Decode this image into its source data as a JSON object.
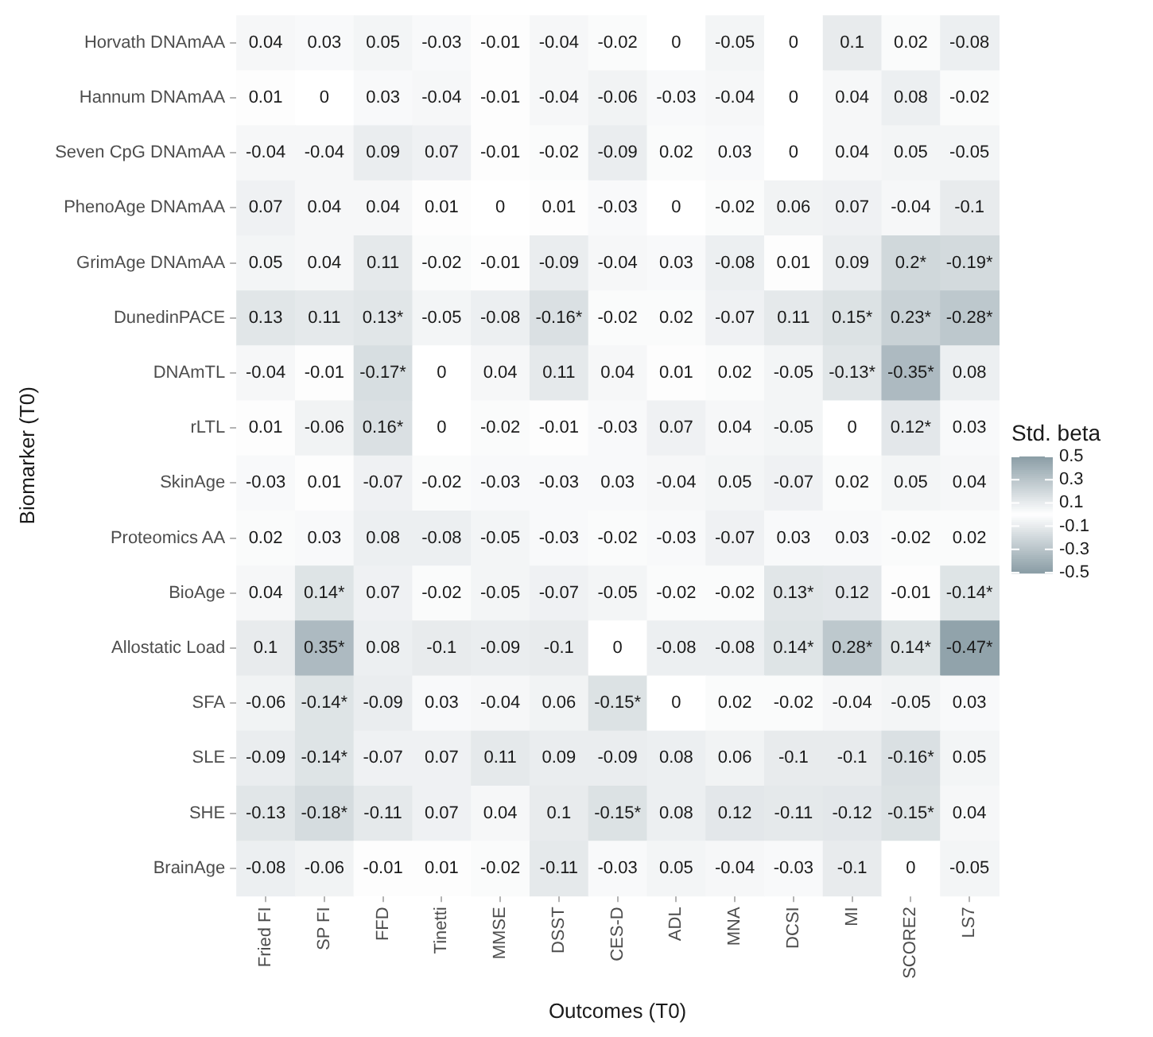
{
  "chart_data": {
    "type": "heatmap",
    "xlabel": "Outcomes (T0)",
    "ylabel": "Biomarker (T0)",
    "legend_title": "Std. beta",
    "categories": [
      "Fried FI",
      "SP FI",
      "FFD",
      "Tinetti",
      "MMSE",
      "DSST",
      "CES-D",
      "ADL",
      "MNA",
      "DCSI",
      "MI",
      "SCORE2",
      "LS7"
    ],
    "y_categories": [
      "Horvath DNAmAA",
      "Hannum DNAmAA",
      "Seven CpG DNAmAA",
      "PhenoAge DNAmAA",
      "GrimAge DNAmAA",
      "DunedinPACE",
      "DNAmTL",
      "rLTL",
      "SkinAge",
      "Proteomics AA",
      "BioAge",
      "Allostatic Load",
      "SFA",
      "SLE",
      "SHE",
      "BrainAge"
    ],
    "cells": [
      [
        0.04,
        0.03,
        0.05,
        -0.03,
        -0.01,
        -0.04,
        -0.02,
        0,
        -0.05,
        0,
        0.1,
        0.02,
        -0.08
      ],
      [
        0.01,
        0,
        0.03,
        -0.04,
        -0.01,
        -0.04,
        -0.06,
        -0.03,
        -0.04,
        0,
        0.04,
        0.08,
        -0.02
      ],
      [
        -0.04,
        -0.04,
        0.09,
        0.07,
        -0.01,
        -0.02,
        -0.09,
        0.02,
        0.03,
        0,
        0.04,
        0.05,
        -0.05
      ],
      [
        0.07,
        0.04,
        0.04,
        0.01,
        0,
        0.01,
        -0.03,
        0,
        -0.02,
        0.06,
        0.07,
        -0.04,
        -0.1
      ],
      [
        0.05,
        0.04,
        0.11,
        -0.02,
        -0.01,
        -0.09,
        -0.04,
        0.03,
        -0.08,
        0.01,
        0.09,
        0.2,
        -0.19
      ],
      [
        0.13,
        0.11,
        0.13,
        -0.05,
        -0.08,
        -0.16,
        -0.02,
        0.02,
        -0.07,
        0.11,
        0.15,
        0.23,
        -0.28
      ],
      [
        -0.04,
        -0.01,
        -0.17,
        0,
        0.04,
        0.11,
        0.04,
        0.01,
        0.02,
        -0.05,
        -0.13,
        -0.35,
        0.08
      ],
      [
        0.01,
        -0.06,
        0.16,
        0,
        -0.02,
        -0.01,
        -0.03,
        0.07,
        0.04,
        -0.05,
        0,
        0.12,
        0.03
      ],
      [
        -0.03,
        0.01,
        -0.07,
        -0.02,
        -0.03,
        -0.03,
        0.03,
        -0.04,
        0.05,
        -0.07,
        0.02,
        0.05,
        0.04
      ],
      [
        0.02,
        0.03,
        0.08,
        -0.08,
        -0.05,
        -0.03,
        -0.02,
        -0.03,
        -0.07,
        0.03,
        0.03,
        -0.02,
        0.02
      ],
      [
        0.04,
        0.14,
        0.07,
        -0.02,
        -0.05,
        -0.07,
        -0.05,
        -0.02,
        -0.02,
        0.13,
        0.12,
        -0.01,
        -0.14
      ],
      [
        0.1,
        0.35,
        0.08,
        -0.1,
        -0.09,
        -0.1,
        0,
        -0.08,
        -0.08,
        0.14,
        0.28,
        0.14,
        -0.47
      ],
      [
        -0.06,
        -0.14,
        -0.09,
        0.03,
        -0.04,
        0.06,
        -0.15,
        0,
        0.02,
        -0.02,
        -0.04,
        -0.05,
        0.03
      ],
      [
        -0.09,
        -0.14,
        -0.07,
        0.07,
        0.11,
        0.09,
        -0.09,
        0.08,
        0.06,
        -0.1,
        -0.1,
        -0.16,
        0.05
      ],
      [
        -0.13,
        -0.18,
        -0.11,
        0.07,
        0.04,
        0.1,
        -0.15,
        0.08,
        0.12,
        -0.11,
        -0.12,
        -0.15,
        0.04
      ],
      [
        -0.08,
        -0.06,
        -0.01,
        0.01,
        -0.02,
        -0.11,
        -0.03,
        0.05,
        -0.04,
        -0.03,
        -0.1,
        0,
        -0.05
      ]
    ],
    "cell_labels": [
      [
        "0.04",
        "0.03",
        "0.05",
        "-0.03",
        "-0.01",
        "-0.04",
        "-0.02",
        "0",
        "-0.05",
        "0",
        "0.1",
        "0.02",
        "-0.08"
      ],
      [
        "0.01",
        "0",
        "0.03",
        "-0.04",
        "-0.01",
        "-0.04",
        "-0.06",
        "-0.03",
        "-0.04",
        "0",
        "0.04",
        "0.08",
        "-0.02"
      ],
      [
        "-0.04",
        "-0.04",
        "0.09",
        "0.07",
        "-0.01",
        "-0.02",
        "-0.09",
        "0.02",
        "0.03",
        "0",
        "0.04",
        "0.05",
        "-0.05"
      ],
      [
        "0.07",
        "0.04",
        "0.04",
        "0.01",
        "0",
        "0.01",
        "-0.03",
        "0",
        "-0.02",
        "0.06",
        "0.07",
        "-0.04",
        "-0.1"
      ],
      [
        "0.05",
        "0.04",
        "0.11",
        "-0.02",
        "-0.01",
        "-0.09",
        "-0.04",
        "0.03",
        "-0.08",
        "0.01",
        "0.09",
        "0.2*",
        "-0.19*"
      ],
      [
        "0.13",
        "0.11",
        "0.13*",
        "-0.05",
        "-0.08",
        "-0.16*",
        "-0.02",
        "0.02",
        "-0.07",
        "0.11",
        "0.15*",
        "0.23*",
        "-0.28*"
      ],
      [
        "-0.04",
        "-0.01",
        "-0.17*",
        "0",
        "0.04",
        "0.11",
        "0.04",
        "0.01",
        "0.02",
        "-0.05",
        "-0.13*",
        "-0.35*",
        "0.08"
      ],
      [
        "0.01",
        "-0.06",
        "0.16*",
        "0",
        "-0.02",
        "-0.01",
        "-0.03",
        "0.07",
        "0.04",
        "-0.05",
        "0",
        "0.12*",
        "0.03"
      ],
      [
        "-0.03",
        "0.01",
        "-0.07",
        "-0.02",
        "-0.03",
        "-0.03",
        "0.03",
        "-0.04",
        "0.05",
        "-0.07",
        "0.02",
        "0.05",
        "0.04"
      ],
      [
        "0.02",
        "0.03",
        "0.08",
        "-0.08",
        "-0.05",
        "-0.03",
        "-0.02",
        "-0.03",
        "-0.07",
        "0.03",
        "0.03",
        "-0.02",
        "0.02"
      ],
      [
        "0.04",
        "0.14*",
        "0.07",
        "-0.02",
        "-0.05",
        "-0.07",
        "-0.05",
        "-0.02",
        "-0.02",
        "0.13*",
        "0.12",
        "-0.01",
        "-0.14*"
      ],
      [
        "0.1",
        "0.35*",
        "0.08",
        "-0.1",
        "-0.09",
        "-0.1",
        "0",
        "-0.08",
        "-0.08",
        "0.14*",
        "0.28*",
        "0.14*",
        "-0.47*"
      ],
      [
        "-0.06",
        "-0.14*",
        "-0.09",
        "0.03",
        "-0.04",
        "0.06",
        "-0.15*",
        "0",
        "0.02",
        "-0.02",
        "-0.04",
        "-0.05",
        "0.03"
      ],
      [
        "-0.09",
        "-0.14*",
        "-0.07",
        "0.07",
        "0.11",
        "0.09",
        "-0.09",
        "0.08",
        "0.06",
        "-0.1",
        "-0.1",
        "-0.16*",
        "0.05"
      ],
      [
        "-0.13",
        "-0.18*",
        "-0.11",
        "0.07",
        "0.04",
        "0.1",
        "-0.15*",
        "0.08",
        "0.12",
        "-0.11",
        "-0.12",
        "-0.15*",
        "0.04"
      ],
      [
        "-0.08",
        "-0.06",
        "-0.01",
        "0.01",
        "-0.02",
        "-0.11",
        "-0.03",
        "0.05",
        "-0.04",
        "-0.03",
        "-0.1",
        "0",
        "-0.05"
      ]
    ],
    "clim": [
      -0.5,
      0.5
    ],
    "cticks": [
      -0.5,
      -0.3,
      -0.1,
      0.1,
      0.3,
      0.5
    ]
  }
}
